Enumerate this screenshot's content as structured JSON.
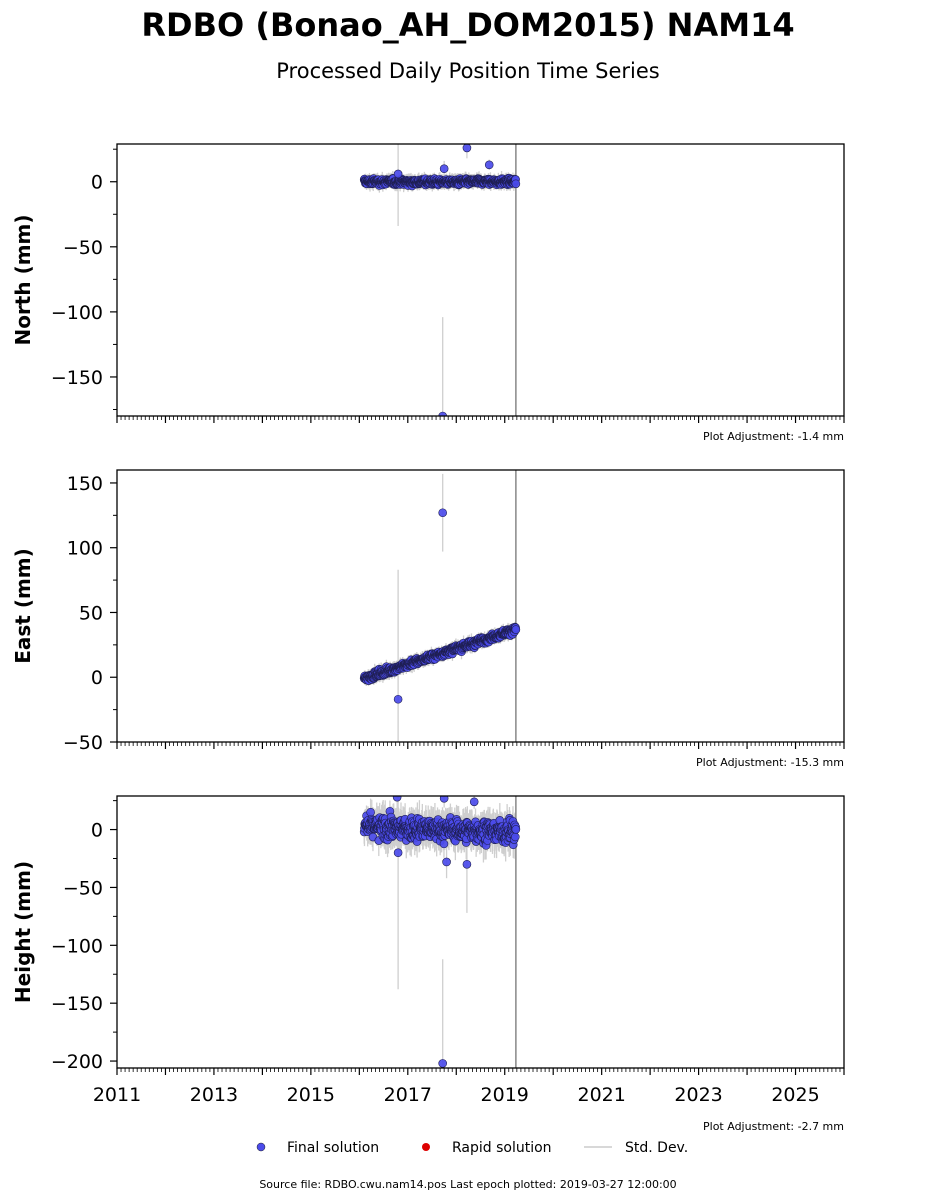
{
  "header": {
    "title": "RDBO (Bonao_AH_DOM2015) NAM14",
    "subtitle": "Processed Daily Position Time Series"
  },
  "footer": {
    "source": "Source file: RDBO.cwu.nam14.pos  Last epoch plotted: 2019-03-27 12:00:00"
  },
  "legend": {
    "items": [
      {
        "label": "Final solution",
        "color": "#4b4bea"
      },
      {
        "label": "Rapid solution",
        "color": "#dd0000"
      },
      {
        "label": "Std. Dev.",
        "color": "#cccccc"
      }
    ]
  },
  "chart_data": [
    {
      "type": "scatter",
      "ylabel": "North (mm)",
      "adjustment": "Plot Adjustment: -1.4 mm",
      "xlim": [
        2011,
        2026
      ],
      "ylim": [
        -180,
        29
      ],
      "yticks": [
        0,
        -50,
        -100,
        -150
      ],
      "ytick_labels": [
        "0",
        "−50",
        "−100",
        "−150"
      ],
      "start": 2016.1,
      "end": 2019.23,
      "trend": [
        0,
        0
      ],
      "noise": 1.6,
      "std": 5,
      "marker_line": 2019.23,
      "outliers": [
        {
          "x": 2016.8,
          "y": 6,
          "err": 40
        },
        {
          "x": 2017.72,
          "y": -180,
          "err": 76
        },
        {
          "x": 2017.75,
          "y": 10,
          "err": 6
        },
        {
          "x": 2018.22,
          "y": 26,
          "err": 8
        },
        {
          "x": 2018.68,
          "y": 13,
          "err": 4
        }
      ]
    },
    {
      "type": "scatter",
      "ylabel": "East (mm)",
      "adjustment": "Plot Adjustment: -15.3 mm",
      "xlim": [
        2011,
        2026
      ],
      "ylim": [
        -50,
        160
      ],
      "yticks": [
        150,
        100,
        50,
        0,
        -50
      ],
      "ytick_labels": [
        "150",
        "100",
        "50",
        "0",
        "−50"
      ],
      "start": 2016.1,
      "end": 2019.23,
      "trend": [
        -1,
        37
      ],
      "noise": 1.8,
      "std": 5,
      "marker_line": 2019.23,
      "outliers": [
        {
          "x": 2016.8,
          "y": -17,
          "err": 100
        },
        {
          "x": 2017.72,
          "y": 127,
          "err": 30
        }
      ]
    },
    {
      "type": "scatter",
      "ylabel": "Height (mm)",
      "adjustment": "Plot Adjustment: -2.7 mm",
      "xlim": [
        2011,
        2026
      ],
      "ylim": [
        -206,
        29
      ],
      "yticks": [
        0,
        -50,
        -100,
        -150,
        -200
      ],
      "ytick_labels": [
        "0",
        "−50",
        "−100",
        "−150",
        "−200"
      ],
      "xticks": [
        2011,
        2013,
        2015,
        2017,
        2019,
        2021,
        2023,
        2025
      ],
      "start": 2016.1,
      "end": 2019.23,
      "trend": [
        2,
        -2
      ],
      "noise": 6.5,
      "std": 14,
      "marker_line": 2019.23,
      "outliers": [
        {
          "x": 2016.78,
          "y": 28,
          "err": 10
        },
        {
          "x": 2016.8,
          "y": -20,
          "err": 118
        },
        {
          "x": 2017.72,
          "y": -202,
          "err": 90
        },
        {
          "x": 2017.75,
          "y": 27,
          "err": 8
        },
        {
          "x": 2017.8,
          "y": -28,
          "err": 14
        },
        {
          "x": 2018.22,
          "y": -30,
          "err": 42
        },
        {
          "x": 2018.37,
          "y": 24,
          "err": 6
        }
      ]
    }
  ]
}
